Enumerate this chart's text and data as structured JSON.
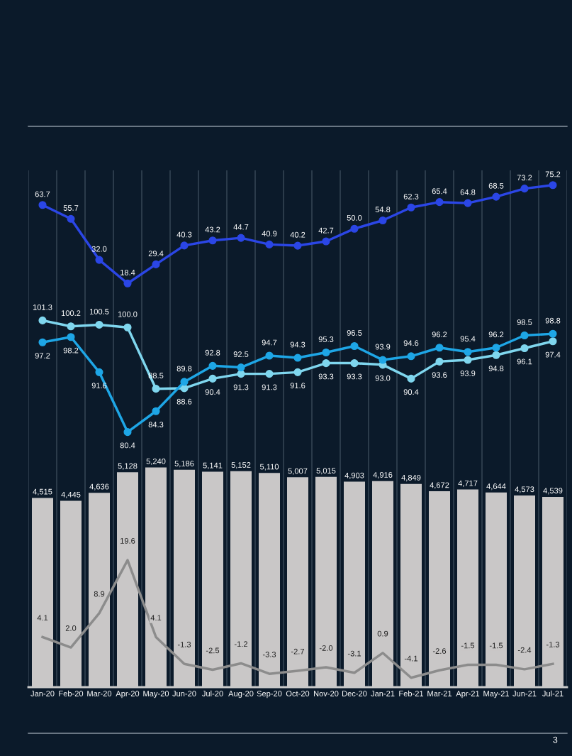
{
  "chart_data": [
    {
      "type": "line",
      "categories": [
        null,
        null,
        null,
        null,
        null,
        null,
        null,
        null,
        null,
        null,
        null,
        null,
        null,
        null,
        null,
        null,
        null,
        null,
        null
      ],
      "marker": "circle",
      "grid": "x",
      "tick_labels": false,
      "series": [
        {
          "color": "#2b46e6",
          "values": [
            63.7,
            55.7,
            32.0,
            18.4,
            29.4,
            40.3,
            43.2,
            44.7,
            40.9,
            40.2,
            42.7,
            50.0,
            54.8,
            62.3,
            65.4,
            64.8,
            68.5,
            73.2,
            75.2
          ],
          "value_labels": [
            "63.7",
            "55.7",
            "32.0",
            "18.4",
            "29.4",
            "40.3",
            "43.2",
            "44.7",
            "40.9",
            "40.2",
            "42.7",
            "50.0",
            "54.8",
            "62.3",
            "65.4",
            "64.8",
            "68.5",
            "73.2",
            "75.2"
          ]
        }
      ]
    },
    {
      "type": "line",
      "categories": [
        null,
        null,
        null,
        null,
        null,
        null,
        null,
        null,
        null,
        null,
        null,
        null,
        null,
        null,
        null,
        null,
        null,
        null,
        null
      ],
      "marker": "circle",
      "grid": "x",
      "tick_labels": false,
      "series": [
        {
          "color": "#7fd6ee",
          "values": [
            101.3,
            100.2,
            100.5,
            100.0,
            88.5,
            88.6,
            90.4,
            91.3,
            91.3,
            91.6,
            93.3,
            93.3,
            93.0,
            90.4,
            93.6,
            93.9,
            94.8,
            96.1,
            97.4
          ],
          "value_labels": [
            "101.3",
            "100.2",
            "100.5",
            "100.0",
            "88.5",
            "88.6",
            "90.4",
            "91.3",
            "91.3",
            "91.6",
            "93.3",
            "93.3",
            "93.0",
            "90.4",
            "93.6",
            "93.9",
            "94.8",
            "96.1",
            "97.4"
          ]
        },
        {
          "color": "#1ea6e6",
          "values": [
            97.2,
            98.2,
            91.6,
            80.4,
            84.3,
            89.8,
            92.8,
            92.5,
            94.7,
            94.3,
            95.3,
            96.5,
            93.9,
            94.6,
            96.2,
            95.4,
            96.2,
            98.5,
            98.8
          ],
          "value_labels": [
            "97.2",
            "98.2",
            "91.6",
            "80.4",
            "84.3",
            "89.8",
            "92.8",
            "92.5",
            "94.7",
            "94.3",
            "95.3",
            "96.5",
            "93.9",
            "94.6",
            "96.2",
            "95.4",
            "96.2",
            "98.5",
            "98.8"
          ]
        }
      ]
    },
    {
      "type": "bar",
      "categories": [
        "Jan-20",
        "Feb-20",
        "Mar-20",
        "Apr-20",
        "May-20",
        "Jun-20",
        "Jul-20",
        "Aug-20",
        "Sep-20",
        "Oct-20",
        "Nov-20",
        "Dec-20",
        "Jan-21",
        "Feb-21",
        "Mar-21",
        "Apr-21",
        "May-21",
        "Jun-21",
        "Jul-21"
      ],
      "grid": "x",
      "tick_labels": "x",
      "annotations": [
        "3"
      ],
      "series": [
        {
          "type": "bar",
          "color": "#c9c7c7",
          "values": [
            4515,
            4445,
            4636,
            5128,
            5240,
            5186,
            5141,
            5152,
            5110,
            5007,
            5015,
            4903,
            4916,
            4849,
            4672,
            4717,
            4644,
            4573,
            4539
          ],
          "value_labels": [
            "4,515",
            "4,445",
            "4,636",
            "5,128",
            "5,240",
            "5,186",
            "5,141",
            "5,152",
            "5,110",
            "5,007",
            "5,015",
            "4,903",
            "4,916",
            "4,849",
            "4,672",
            "4,717",
            "4,644",
            "4,573",
            "4,539"
          ]
        },
        {
          "type": "line",
          "axis": "y2",
          "color": "#8c8c8c",
          "values": [
            4.1,
            2.0,
            8.9,
            19.6,
            4.1,
            -1.3,
            -2.5,
            -1.2,
            -3.3,
            -2.7,
            -2.0,
            -3.1,
            0.9,
            -4.1,
            -2.6,
            -1.5,
            -1.5,
            -2.4,
            -1.3
          ],
          "value_labels": [
            "4.1",
            "2.0",
            "8.9",
            "19.6",
            "4.1",
            "-1.3",
            "-2.5",
            "-1.2",
            "-3.3",
            "-2.7",
            "-2.0",
            "-3.1",
            "0.9",
            "-4.1",
            "-2.6",
            "-1.5",
            "-1.5",
            "-2.4",
            "-1.3"
          ]
        }
      ]
    }
  ]
}
